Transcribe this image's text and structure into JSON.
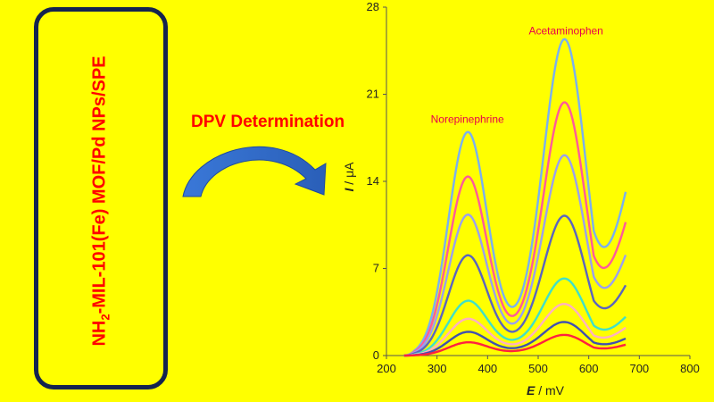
{
  "left_panel": {
    "label_prefix": "NH",
    "label_subscript": "2",
    "label_suffix": "-MIL-101(Fe) MOF/Pd NPs/SPE",
    "frame_color": "#14234f"
  },
  "arrow_label": "DPV Determination",
  "arrow_icon": "curved-arrow-icon",
  "colors": {
    "background": "#FFFF00",
    "label": "#ff0000",
    "annotation": "#e8004c"
  },
  "chart_data": {
    "type": "line",
    "xlabel_italic": "E",
    "xlabel_unit": " / mV",
    "ylabel_italic": "I",
    "ylabel_unit": " / μA",
    "xlim": [
      200,
      800
    ],
    "ylim": [
      0,
      28
    ],
    "xticks": [
      200,
      300,
      400,
      500,
      600,
      700,
      800
    ],
    "yticks": [
      0,
      7,
      14,
      21,
      28
    ],
    "x_range": [
      235,
      675
    ],
    "annotations": [
      {
        "text": "Norepinephrine",
        "x": 360,
        "y": 18.7
      },
      {
        "text": "Acetaminophen",
        "x": 555,
        "y": 25.8
      }
    ],
    "series": [
      {
        "color": "#7ab0f0",
        "peak1": 17.5,
        "peak2": 25.0,
        "valley": 3.6,
        "end": 13.5
      },
      {
        "color": "#ff5a9a",
        "peak1": 14.0,
        "peak2": 20.0,
        "valley": 3.0,
        "end": 11.0
      },
      {
        "color": "#9aa0f0",
        "peak1": 11.0,
        "peak2": 15.8,
        "valley": 2.5,
        "end": 8.3
      },
      {
        "color": "#5a64c0",
        "peak1": 7.8,
        "peak2": 11.0,
        "valley": 2.0,
        "end": 5.8
      },
      {
        "color": "#40e0c8",
        "peak1": 4.2,
        "peak2": 6.0,
        "valley": 1.6,
        "end": 3.2
      },
      {
        "color": "#ffb0c0",
        "peak1": 2.8,
        "peak2": 4.0,
        "valley": 1.2,
        "end": 2.3
      },
      {
        "color": "#4050b0",
        "peak1": 1.8,
        "peak2": 2.6,
        "valley": 0.8,
        "end": 1.4
      },
      {
        "color": "#ff2040",
        "peak1": 1.0,
        "peak2": 1.6,
        "valley": 0.5,
        "end": 0.9
      }
    ]
  }
}
